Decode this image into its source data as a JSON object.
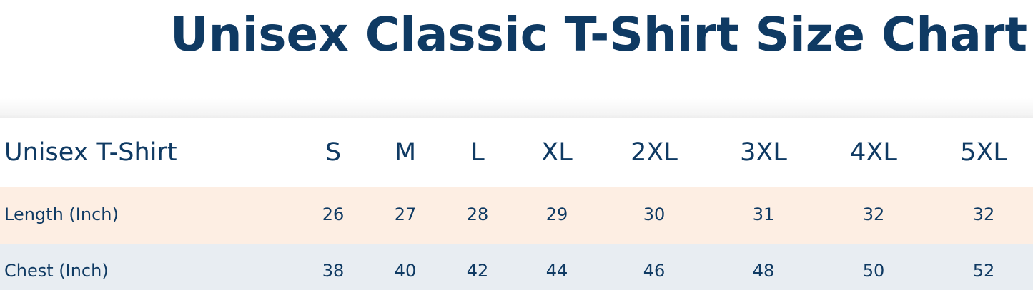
{
  "title": "Unisex Classic T-Shirt Size Chart",
  "table": {
    "header": {
      "label": "Unisex T-Shirt",
      "sizes": [
        "S",
        "M",
        "L",
        "XL",
        "2XL",
        "3XL",
        "4XL",
        "5XL"
      ]
    },
    "rows": [
      {
        "label": "Length (Inch)",
        "values": [
          "26",
          "27",
          "28",
          "29",
          "30",
          "31",
          "32",
          "32"
        ]
      },
      {
        "label": "Chest (Inch)",
        "values": [
          "38",
          "40",
          "42",
          "44",
          "46",
          "48",
          "50",
          "52"
        ]
      }
    ]
  },
  "colors": {
    "text": "#0f3a63",
    "row_length_bg": "#fdeee3",
    "row_chest_bg": "#e8edf2"
  }
}
